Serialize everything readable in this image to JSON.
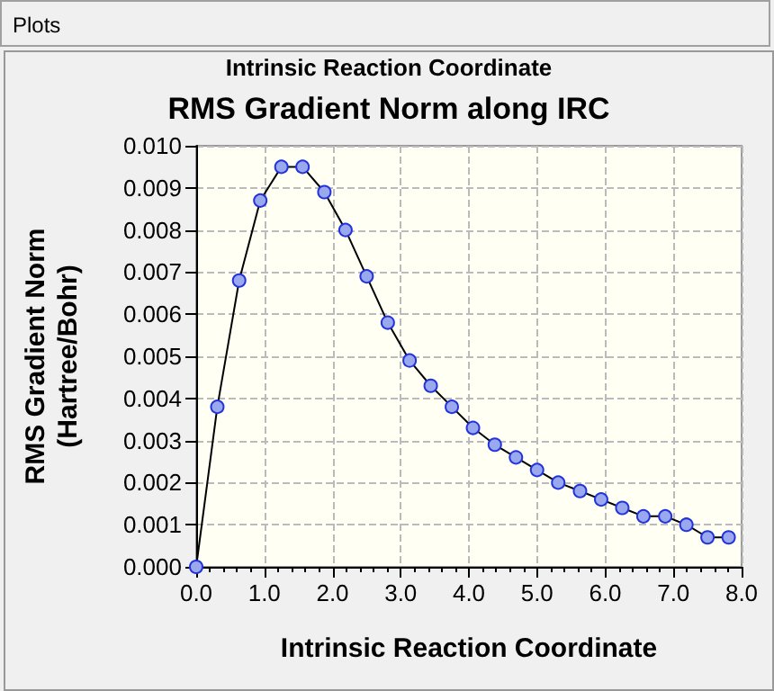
{
  "chart_data": {
    "type": "line",
    "title": "RMS Gradient Norm along IRC",
    "xlabel": "Intrinsic Reaction Coordinate",
    "ylabel": "RMS Gradient Norm\n(Hartree/Bohr)",
    "annotations": [
      "Plots",
      "Intrinsic Reaction Coordinate"
    ],
    "x": [
      0,
      0.31,
      0.63,
      0.94,
      1.25,
      1.56,
      1.88,
      2.19,
      2.5,
      2.81,
      3.13,
      3.44,
      3.75,
      4.06,
      4.38,
      4.69,
      5.0,
      5.31,
      5.63,
      5.94,
      6.25,
      6.56,
      6.88,
      7.19,
      7.5,
      7.81
    ],
    "series": [
      {
        "color": "#000000",
        "values": [
          0,
          0.0038,
          0.0068,
          0.0087,
          0.0095,
          0.0095,
          0.0089,
          0.008,
          0.0069,
          0.0058,
          0.0049,
          0.0043,
          0.0038,
          0.0033,
          0.0029,
          0.0026,
          0.0023,
          0.002,
          0.0018,
          0.0016,
          0.0014,
          0.0012,
          0.0012,
          0.001,
          0.0007,
          0.0007
        ]
      }
    ],
    "xlim": [
      0,
      8
    ],
    "xticks": [
      {
        "value": 0,
        "label": "0.0"
      },
      {
        "value": 1,
        "label": "1.0"
      },
      {
        "value": 2,
        "label": "2.0"
      },
      {
        "value": 3,
        "label": "3.0"
      },
      {
        "value": 4,
        "label": "4.0"
      },
      {
        "value": 5,
        "label": "5.0"
      },
      {
        "value": 6,
        "label": "6.0"
      },
      {
        "value": 7,
        "label": "7.0"
      },
      {
        "value": 8,
        "label": "8.0"
      }
    ],
    "ylim": [
      0,
      0.01
    ],
    "yticks": [
      {
        "value": 0,
        "label": "0.000"
      },
      {
        "value": 0.001,
        "label": "0.001"
      },
      {
        "value": 0.002,
        "label": "0.002"
      },
      {
        "value": 0.003,
        "label": "0.003"
      },
      {
        "value": 0.004,
        "label": "0.004"
      },
      {
        "value": 0.005,
        "label": "0.005"
      },
      {
        "value": 0.006,
        "label": "0.006"
      },
      {
        "value": 0.007,
        "label": "0.007"
      },
      {
        "value": 0.008,
        "label": "0.008"
      },
      {
        "value": 0.009,
        "label": "0.009"
      },
      {
        "value": 0.01,
        "label": "0.010"
      }
    ],
    "grid": true,
    "marker": "circle",
    "line_style": "solid"
  }
}
